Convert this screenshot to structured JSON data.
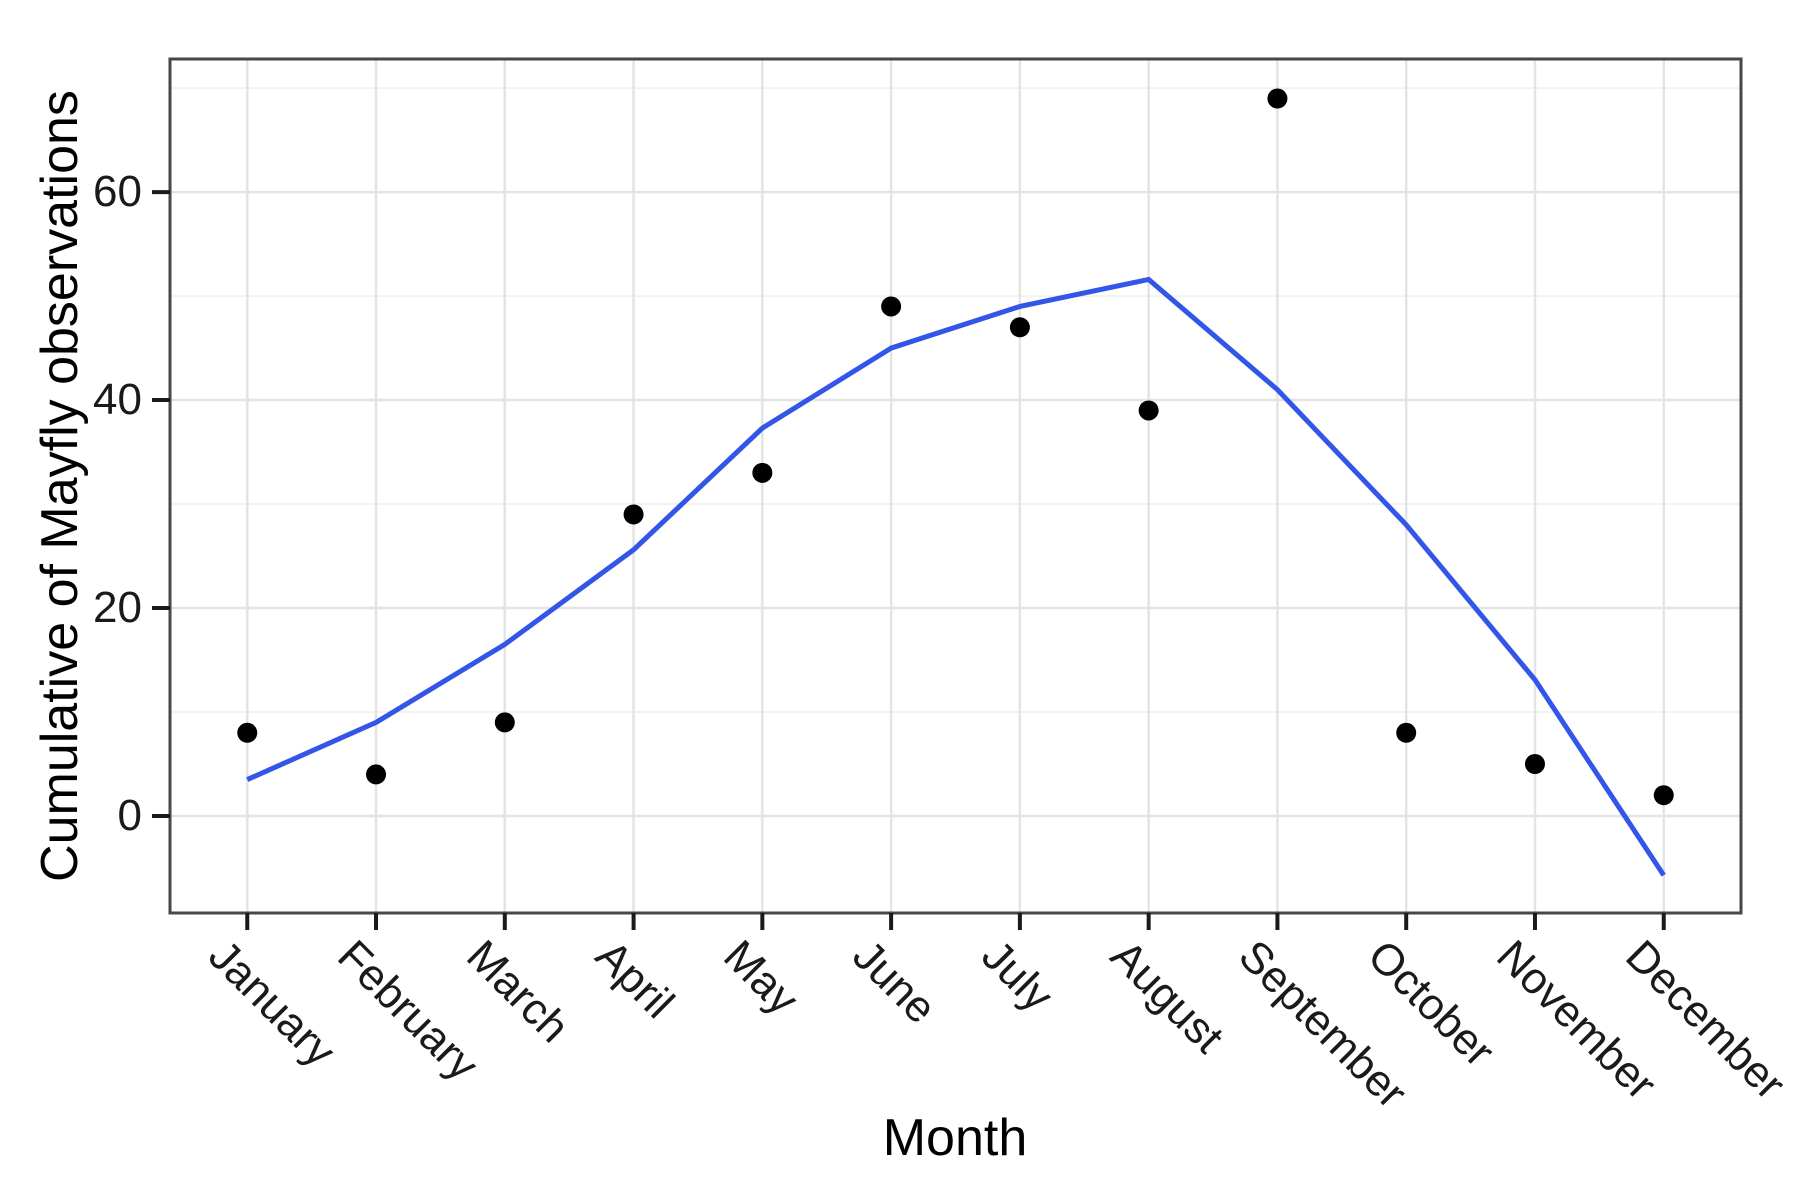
{
  "chart_data": {
    "type": "scatter",
    "title": "",
    "xlabel": "Month",
    "ylabel": "Cumulative of Mayfly observations",
    "categories": [
      "January",
      "February",
      "March",
      "April",
      "May",
      "June",
      "July",
      "August",
      "September",
      "October",
      "November",
      "December"
    ],
    "series": [
      {
        "name": "mayfly-observations-points",
        "style": "points",
        "color": "#000000",
        "values": [
          8,
          4,
          9,
          29,
          33,
          49,
          47,
          39,
          69,
          8,
          5,
          2
        ]
      },
      {
        "name": "smooth-trend-line",
        "style": "line",
        "color": "#3355E8",
        "values": [
          3.5,
          9,
          16.5,
          25.6,
          37.3,
          45,
          49,
          51.6,
          41,
          28,
          13.1,
          -5.7
        ]
      }
    ],
    "y_axis": {
      "ticks": [
        0,
        20,
        40,
        60
      ],
      "minor_gridlines": [
        10,
        30,
        50,
        70
      ],
      "range": [
        -9.33,
        72.8
      ]
    },
    "x_axis": {
      "label_angle_deg": 45
    },
    "grid": "major-and-minor",
    "legend": "none",
    "colors": {
      "panel_border": "#474747",
      "major_grid": "#e4e4e4",
      "minor_grid": "#f2f2f2",
      "tick_mark": "#1a1a1a"
    }
  }
}
